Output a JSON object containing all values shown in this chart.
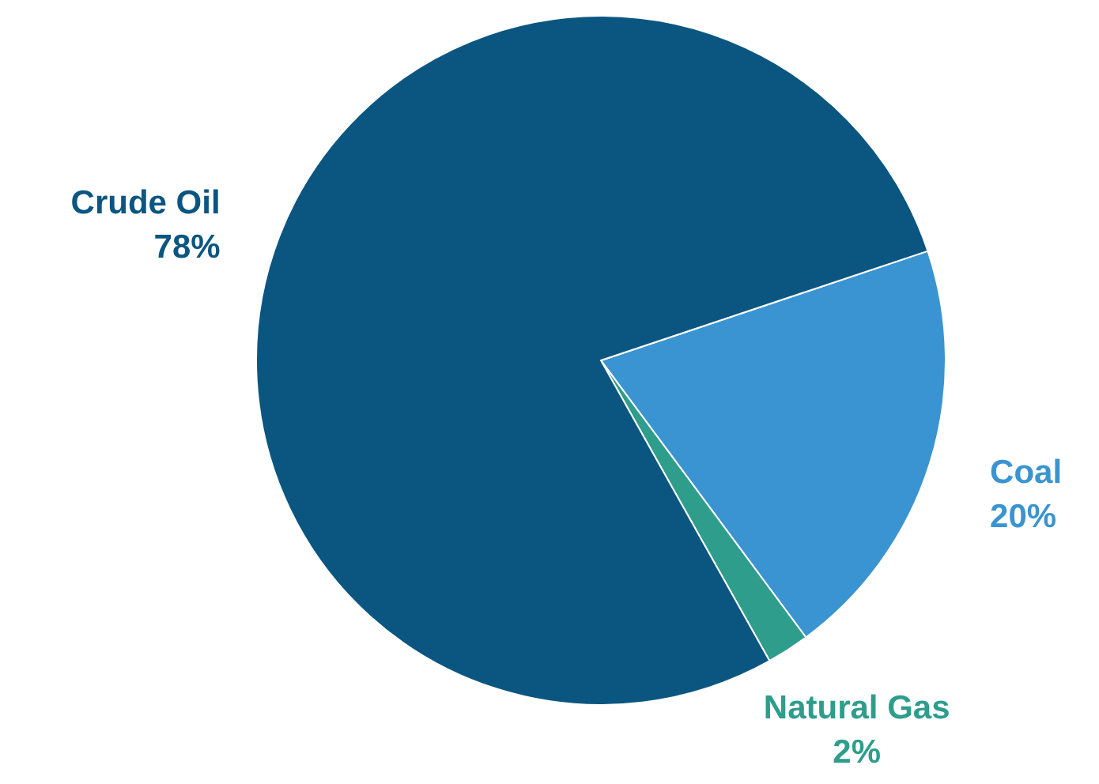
{
  "chart_data": {
    "type": "pie",
    "categories": [
      "Coal",
      "Natural Gas",
      "Crude Oil"
    ],
    "values": [
      20,
      2,
      78
    ],
    "colors": [
      "#3a94d1",
      "#2e9d8c",
      "#0b5680"
    ],
    "value_labels": [
      "20%",
      "2%",
      "78%"
    ]
  }
}
